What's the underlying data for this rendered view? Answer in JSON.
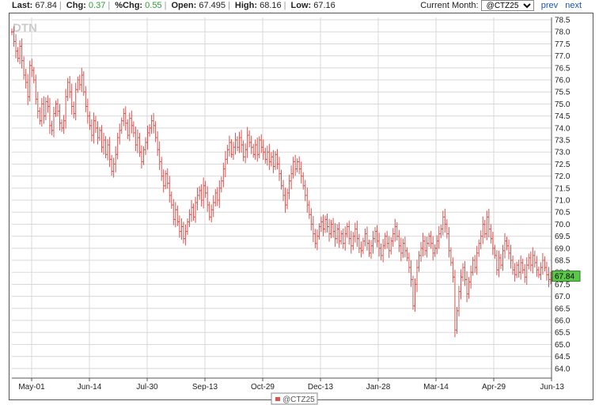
{
  "header": {
    "last_label": "Last:",
    "last_value": "67.84",
    "chg_label": "Chg:",
    "chg_value": "0.37",
    "pchg_label": "%Chg:",
    "pchg_value": "0.55",
    "open_label": "Open:",
    "open_value": "67.495",
    "high_label": "High:",
    "high_value": "68.16",
    "low_label": "Low:",
    "low_value": "67.16",
    "month_label": "Current Month:",
    "month_selected": "@CTZ25",
    "prev_label": "prev",
    "next_label": "next"
  },
  "watermark": "DTN",
  "colors": {
    "series": "#d9534f",
    "grid": "#d8d8d8",
    "last_badge": "#5cc84a"
  },
  "chart_data": {
    "type": "ohlc",
    "title": "",
    "xlabel": "",
    "ylabel": "",
    "ylim": [
      63.6,
      78.6
    ],
    "y_ticks": [
      "64.0",
      "64.5",
      "65.0",
      "65.5",
      "66.0",
      "66.5",
      "67.0",
      "67.5",
      "68.0",
      "68.5",
      "69.0",
      "69.5",
      "70.0",
      "70.5",
      "71.0",
      "71.5",
      "72.0",
      "72.5",
      "73.0",
      "73.5",
      "74.0",
      "74.5",
      "75.0",
      "75.5",
      "76.0",
      "76.5",
      "77.0",
      "77.5",
      "78.0",
      "78.5"
    ],
    "x_ticks": [
      "May-01",
      "Jun-14",
      "Jul-30",
      "Sep-13",
      "Oct-29",
      "Dec-13",
      "Jan-28",
      "Mar-14",
      "Apr-29",
      "Jun-13"
    ],
    "y_axis_position": "right",
    "grid": true,
    "last_value": "67.84",
    "legend": "@CTZ25",
    "legend_position": "bottom-center",
    "series_close": [
      78.0,
      77.6,
      77.2,
      76.9,
      77.4,
      76.8,
      76.2,
      75.9,
      75.3,
      76.6,
      76.4,
      76.0,
      75.2,
      74.7,
      74.3,
      75.0,
      74.5,
      75.1,
      74.9,
      74.1,
      73.9,
      74.6,
      75.0,
      74.7,
      74.2,
      74.0,
      74.3,
      75.3,
      75.9,
      75.5,
      74.9,
      74.6,
      75.6,
      76.0,
      75.8,
      76.2,
      75.5,
      74.9,
      74.5,
      74.1,
      73.7,
      74.3,
      74.0,
      73.6,
      73.9,
      73.2,
      73.5,
      72.9,
      73.3,
      72.7,
      72.2,
      72.5,
      72.9,
      73.6,
      73.9,
      74.3,
      74.6,
      74.2,
      73.7,
      74.4,
      74.1,
      73.8,
      73.3,
      73.6,
      73.0,
      72.6,
      73.1,
      73.4,
      73.8,
      74.0,
      74.3,
      74.1,
      73.6,
      73.1,
      72.6,
      72.0,
      71.6,
      72.1,
      71.7,
      71.2,
      70.8,
      70.2,
      70.6,
      70.1,
      69.7,
      69.9,
      69.4,
      69.7,
      70.1,
      70.4,
      70.7,
      70.3,
      70.9,
      71.2,
      71.4,
      71.0,
      71.6,
      71.3,
      70.8,
      70.3,
      70.6,
      70.9,
      71.3,
      71.0,
      71.5,
      71.8,
      72.3,
      72.7,
      73.1,
      73.4,
      72.9,
      73.2,
      73.5,
      73.2,
      73.6,
      73.3,
      72.8,
      73.1,
      73.7,
      73.4,
      73.2,
      72.9,
      73.3,
      72.9,
      73.5,
      73.2,
      73.0,
      72.7,
      73.0,
      72.6,
      72.8,
      72.4,
      72.9,
      72.5,
      72.1,
      71.6,
      71.2,
      70.8,
      71.3,
      71.8,
      72.1,
      72.6,
      72.3,
      72.6,
      72.3,
      72.0,
      71.6,
      71.2,
      70.8,
      70.4,
      70.0,
      69.6,
      69.2,
      69.5,
      69.9,
      70.1,
      69.8,
      70.2,
      69.9,
      69.6,
      70.0,
      69.7,
      69.4,
      69.8,
      69.3,
      69.6,
      69.2,
      69.6,
      69.9,
      69.4,
      69.1,
      69.5,
      69.8,
      69.4,
      69.0,
      68.9,
      69.3,
      69.6,
      69.2,
      68.8,
      69.1,
      69.4,
      69.7,
      69.3,
      69.0,
      68.7,
      69.1,
      69.5,
      69.2,
      68.9,
      69.3,
      69.6,
      69.9,
      69.5,
      69.1,
      68.8,
      69.2,
      68.9,
      68.6,
      68.2,
      67.7,
      66.6,
      67.5,
      68.2,
      68.7,
      69.0,
      69.3,
      68.9,
      69.2,
      69.5,
      69.2,
      68.8,
      69.0,
      69.3,
      69.6,
      69.8,
      70.3,
      70.0,
      69.6,
      68.9,
      68.4,
      67.8,
      65.6,
      66.4,
      67.2,
      67.8,
      68.2,
      67.7,
      67.1,
      67.6,
      68.0,
      68.5,
      68.2,
      68.8,
      69.2,
      69.5,
      70.0,
      69.6,
      70.3,
      69.8,
      69.4,
      69.0,
      68.7,
      68.1,
      68.6,
      68.3,
      68.9,
      69.3,
      69.1,
      68.8,
      68.5,
      68.1,
      67.9,
      68.3,
      68.0,
      68.4,
      68.1,
      67.8,
      68.3,
      68.6,
      68.3,
      68.7,
      68.4,
      68.1,
      67.9,
      68.2,
      68.5,
      68.2,
      67.9,
      67.7,
      67.84
    ]
  }
}
